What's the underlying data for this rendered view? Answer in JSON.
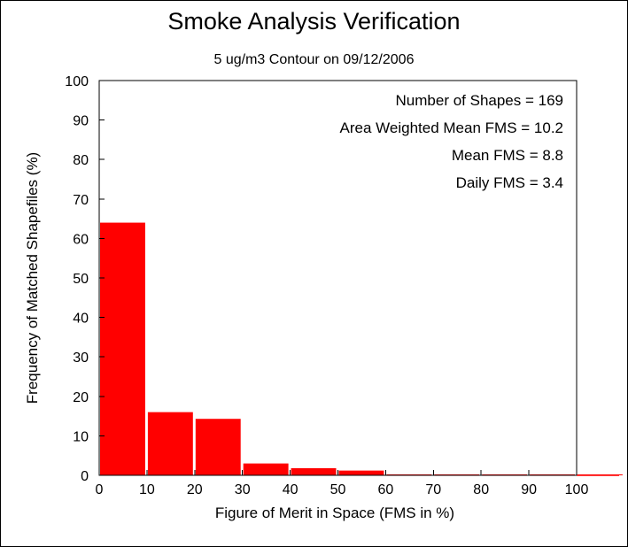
{
  "chart_data": {
    "type": "bar",
    "title": "Smoke Analysis Verification",
    "subtitle": "5 ug/m3 Contour on 09/12/2006",
    "xlabel": "Figure of Merit in Space (FMS in %)",
    "ylabel": "Frequency of Matched Shapefiles (%)",
    "xlim": [
      0,
      110
    ],
    "ylim": [
      0,
      100
    ],
    "x_ticks": [
      "0",
      "10",
      "20",
      "30",
      "40",
      "50",
      "60",
      "70",
      "80",
      "90",
      "100"
    ],
    "y_ticks": [
      "0",
      "10",
      "20",
      "30",
      "40",
      "50",
      "60",
      "70",
      "80",
      "90",
      "100"
    ],
    "bins": [
      {
        "from": 0,
        "to": 10,
        "value": 64.0
      },
      {
        "from": 10,
        "to": 20,
        "value": 16.0
      },
      {
        "from": 20,
        "to": 30,
        "value": 14.3
      },
      {
        "from": 30,
        "to": 40,
        "value": 3.0
      },
      {
        "from": 40,
        "to": 50,
        "value": 1.8
      },
      {
        "from": 50,
        "to": 60,
        "value": 1.2
      },
      {
        "from": 60,
        "to": 70,
        "value": 0
      },
      {
        "from": 70,
        "to": 80,
        "value": 0
      },
      {
        "from": 80,
        "to": 90,
        "value": 0
      },
      {
        "from": 90,
        "to": 100,
        "value": 0
      },
      {
        "from": 100,
        "to": 110,
        "value": 0
      }
    ],
    "bar_color": "#ff0000",
    "stats": [
      "Number of Shapes = 169",
      "Area Weighted Mean FMS = 10.2",
      "Mean FMS = 8.8",
      "Daily FMS = 3.4"
    ],
    "grid": false
  }
}
